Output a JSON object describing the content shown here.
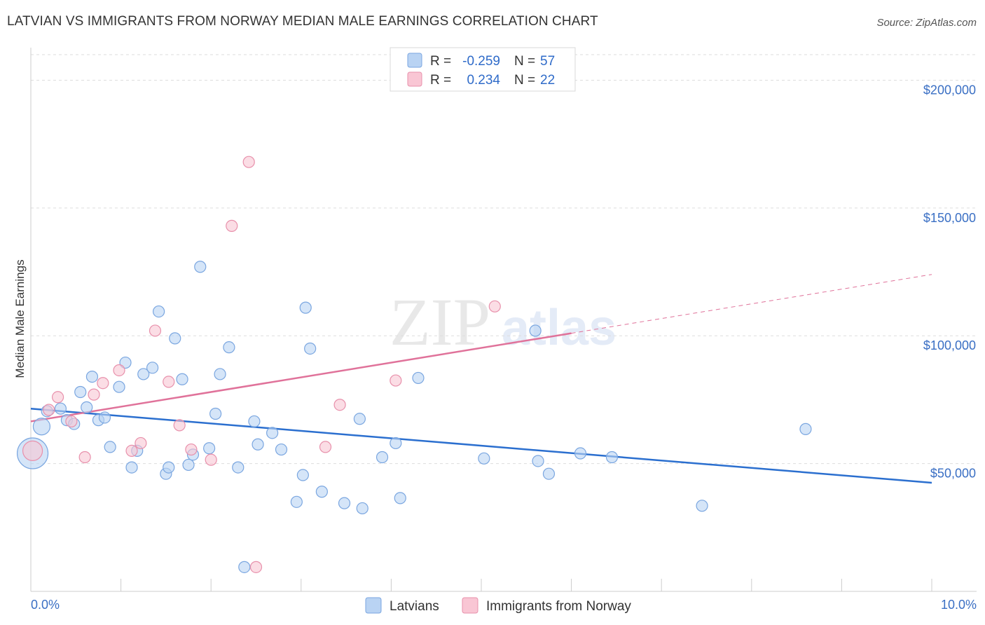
{
  "header": {
    "title": "LATVIAN VS IMMIGRANTS FROM NORWAY MEDIAN MALE EARNINGS CORRELATION CHART",
    "source": "Source: ZipAtlas.com"
  },
  "watermark": {
    "zip": "ZIP",
    "atlas": "atlas"
  },
  "colors": {
    "latvians_fill": "#b9d3f3",
    "latvians_stroke": "#7aa6e0",
    "latvians_line": "#2b6fcf",
    "norway_fill": "#f9c6d4",
    "norway_stroke": "#e890ab",
    "norway_line": "#e0729a",
    "tick_label": "#3a6fc4",
    "grid": "#dddddd"
  },
  "legend": {
    "row1": {
      "r_label": "R =",
      "r_value": "-0.259",
      "n_label": "N =",
      "n_value": "57"
    },
    "row2": {
      "r_label": "R =",
      "r_value": "0.234",
      "n_label": "N =",
      "n_value": "22"
    }
  },
  "bottom_legend": {
    "series1": "Latvians",
    "series2": "Immigrants from Norway"
  },
  "chart_data": {
    "type": "scatter",
    "title": "LATVIAN VS IMMIGRANTS FROM NORWAY MEDIAN MALE EARNINGS CORRELATION CHART",
    "xlabel": "",
    "ylabel": "Median Male Earnings",
    "xlim": [
      0,
      10
    ],
    "ylim": [
      0,
      210000
    ],
    "x_tick_labels": [
      "0.0%",
      "10.0%"
    ],
    "y_ticks": [
      50000,
      100000,
      150000,
      200000
    ],
    "y_tick_labels": [
      "$50,000",
      "$100,000",
      "$150,000",
      "$200,000"
    ],
    "grid": true,
    "series": [
      {
        "name": "Latvians",
        "r": -0.259,
        "n": 57,
        "trend": {
          "x": [
            0.0,
            10.0
          ],
          "y": [
            71500,
            42500
          ]
        },
        "points": [
          {
            "x": 0.02,
            "y": 54000,
            "s": 22
          },
          {
            "x": 0.12,
            "y": 64500,
            "s": 12
          },
          {
            "x": 0.18,
            "y": 70500,
            "s": 8
          },
          {
            "x": 0.33,
            "y": 71500,
            "s": 8
          },
          {
            "x": 0.4,
            "y": 67000,
            "s": 8
          },
          {
            "x": 0.48,
            "y": 65500,
            "s": 8
          },
          {
            "x": 0.55,
            "y": 78000,
            "s": 8
          },
          {
            "x": 0.62,
            "y": 72000,
            "s": 8
          },
          {
            "x": 0.68,
            "y": 84000,
            "s": 8
          },
          {
            "x": 0.75,
            "y": 67000,
            "s": 8
          },
          {
            "x": 0.82,
            "y": 68000,
            "s": 8
          },
          {
            "x": 0.88,
            "y": 56500,
            "s": 8
          },
          {
            "x": 0.98,
            "y": 80000,
            "s": 8
          },
          {
            "x": 1.05,
            "y": 89500,
            "s": 8
          },
          {
            "x": 1.12,
            "y": 48500,
            "s": 8
          },
          {
            "x": 1.18,
            "y": 55000,
            "s": 8
          },
          {
            "x": 1.25,
            "y": 85000,
            "s": 8
          },
          {
            "x": 1.35,
            "y": 87500,
            "s": 8
          },
          {
            "x": 1.42,
            "y": 109500,
            "s": 8
          },
          {
            "x": 1.5,
            "y": 46000,
            "s": 8
          },
          {
            "x": 1.53,
            "y": 48500,
            "s": 8
          },
          {
            "x": 1.6,
            "y": 99000,
            "s": 8
          },
          {
            "x": 1.68,
            "y": 83000,
            "s": 8
          },
          {
            "x": 1.75,
            "y": 49500,
            "s": 8
          },
          {
            "x": 1.8,
            "y": 53500,
            "s": 8
          },
          {
            "x": 1.88,
            "y": 127000,
            "s": 8
          },
          {
            "x": 1.98,
            "y": 56000,
            "s": 8
          },
          {
            "x": 2.05,
            "y": 69500,
            "s": 8
          },
          {
            "x": 2.1,
            "y": 85000,
            "s": 8
          },
          {
            "x": 2.2,
            "y": 95500,
            "s": 8
          },
          {
            "x": 2.3,
            "y": 48500,
            "s": 8
          },
          {
            "x": 2.37,
            "y": 9500,
            "s": 8
          },
          {
            "x": 2.48,
            "y": 66500,
            "s": 8
          },
          {
            "x": 2.52,
            "y": 57500,
            "s": 8
          },
          {
            "x": 2.68,
            "y": 62000,
            "s": 8
          },
          {
            "x": 2.78,
            "y": 55500,
            "s": 8
          },
          {
            "x": 2.95,
            "y": 35000,
            "s": 8
          },
          {
            "x": 3.02,
            "y": 45500,
            "s": 8
          },
          {
            "x": 3.05,
            "y": 111000,
            "s": 8
          },
          {
            "x": 3.1,
            "y": 95000,
            "s": 8
          },
          {
            "x": 3.23,
            "y": 39000,
            "s": 8
          },
          {
            "x": 3.48,
            "y": 34500,
            "s": 8
          },
          {
            "x": 3.65,
            "y": 67500,
            "s": 8
          },
          {
            "x": 3.68,
            "y": 32500,
            "s": 8
          },
          {
            "x": 3.9,
            "y": 52500,
            "s": 8
          },
          {
            "x": 4.05,
            "y": 58000,
            "s": 8
          },
          {
            "x": 4.1,
            "y": 36500,
            "s": 8
          },
          {
            "x": 4.3,
            "y": 83500,
            "s": 8
          },
          {
            "x": 5.03,
            "y": 52000,
            "s": 8
          },
          {
            "x": 5.6,
            "y": 102000,
            "s": 8
          },
          {
            "x": 5.63,
            "y": 51000,
            "s": 8
          },
          {
            "x": 5.75,
            "y": 46000,
            "s": 8
          },
          {
            "x": 6.1,
            "y": 54000,
            "s": 8
          },
          {
            "x": 6.45,
            "y": 52500,
            "s": 8
          },
          {
            "x": 7.45,
            "y": 33500,
            "s": 8
          },
          {
            "x": 8.6,
            "y": 63500,
            "s": 8
          }
        ]
      },
      {
        "name": "Immigrants from Norway",
        "r": 0.234,
        "n": 22,
        "trend": {
          "x": [
            0.0,
            6.0
          ],
          "y": [
            66500,
            101000
          ]
        },
        "trend_dashed": {
          "x": [
            6.0,
            10.0
          ],
          "y": [
            101000,
            124000
          ]
        },
        "points": [
          {
            "x": 0.02,
            "y": 55000,
            "s": 14
          },
          {
            "x": 0.2,
            "y": 71000,
            "s": 8
          },
          {
            "x": 0.3,
            "y": 76000,
            "s": 8
          },
          {
            "x": 0.45,
            "y": 66500,
            "s": 8
          },
          {
            "x": 0.6,
            "y": 52500,
            "s": 8
          },
          {
            "x": 0.7,
            "y": 77000,
            "s": 8
          },
          {
            "x": 0.8,
            "y": 81500,
            "s": 8
          },
          {
            "x": 0.98,
            "y": 86500,
            "s": 8
          },
          {
            "x": 1.12,
            "y": 55000,
            "s": 8
          },
          {
            "x": 1.22,
            "y": 58000,
            "s": 8
          },
          {
            "x": 1.38,
            "y": 102000,
            "s": 8
          },
          {
            "x": 1.53,
            "y": 82000,
            "s": 8
          },
          {
            "x": 1.65,
            "y": 65000,
            "s": 8
          },
          {
            "x": 1.78,
            "y": 55500,
            "s": 8
          },
          {
            "x": 2.0,
            "y": 51500,
            "s": 8
          },
          {
            "x": 2.23,
            "y": 143000,
            "s": 8
          },
          {
            "x": 2.42,
            "y": 168000,
            "s": 8
          },
          {
            "x": 2.5,
            "y": 9500,
            "s": 8
          },
          {
            "x": 3.27,
            "y": 56500,
            "s": 8
          },
          {
            "x": 3.43,
            "y": 73000,
            "s": 8
          },
          {
            "x": 4.05,
            "y": 82500,
            "s": 8
          },
          {
            "x": 5.15,
            "y": 111500,
            "s": 8
          }
        ]
      }
    ]
  }
}
